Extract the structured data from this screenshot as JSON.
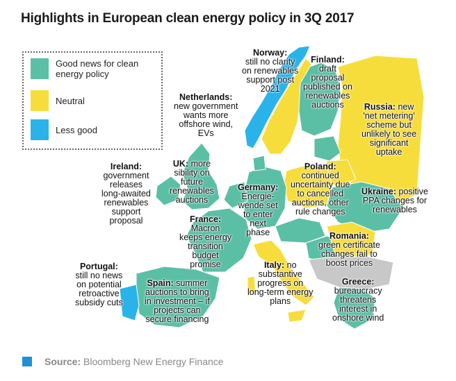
{
  "title": "Highlights in European clean energy policy in 3Q 2017",
  "colors": {
    "good": "#5bbfa6",
    "neutral": "#f7dd3c",
    "less_good": "#29b3ea",
    "no_data": "#c8c8c8",
    "accent": "#1e90d6"
  },
  "legend": [
    {
      "label": "Good news for clean energy policy",
      "category": "good"
    },
    {
      "label": "Neutral",
      "category": "neutral"
    },
    {
      "label": "Less good",
      "category": "less_good"
    }
  ],
  "countries": {
    "norway": {
      "name": "Norway:",
      "text": [
        "still no clarity",
        "on renewables",
        "support post",
        "2021"
      ],
      "category": "less_good"
    },
    "finland": {
      "name": "Finland:",
      "text": [
        "draft",
        "proposal",
        "published on",
        "renewables",
        "auctions"
      ],
      "category": "good"
    },
    "netherlands": {
      "name": "Netherlands:",
      "text": [
        "new government",
        "wants more",
        "offshore wind,",
        "EVs"
      ],
      "category": "good"
    },
    "russia": {
      "name": "Russia:",
      "text": [
        "new",
        "'net metering'",
        "scheme but",
        "unlikely to see",
        "significant",
        "uptake"
      ],
      "category": "neutral"
    },
    "ireland": {
      "name": "Ireland:",
      "text": [
        "government",
        "releases",
        "long-awaited",
        "renewables",
        "support",
        "proposal"
      ],
      "category": "good"
    },
    "uk": {
      "name": "UK:",
      "text": [
        "more",
        "sibility on",
        "future",
        "renewables",
        "auctions"
      ],
      "category": "good"
    },
    "poland": {
      "name": "Poland:",
      "text": [
        "continued",
        "uncertainty due",
        "to cancelled",
        "auctions, other",
        "rule changes"
      ],
      "category": "neutral"
    },
    "germany": {
      "name": "Germany:",
      "text": [
        "Energie-",
        "wende set",
        "to enter",
        "next",
        "phase"
      ],
      "category": "good"
    },
    "ukraine": {
      "name": "Ukraine:",
      "text": [
        "positive",
        "PPA changes for",
        "renewables"
      ],
      "category": "good"
    },
    "france": {
      "name": "France:",
      "text": [
        "Macron",
        "keeps energy",
        "transition",
        "budget",
        "promise"
      ],
      "category": "good"
    },
    "romania": {
      "name": "Romania:",
      "text": [
        "green certificate",
        "changes fail to",
        "boost prices"
      ],
      "category": "neutral"
    },
    "portugal": {
      "name": "Portugal:",
      "text": [
        "still no news",
        "on potential",
        "retroactive",
        "subsidy cuts"
      ],
      "category": "less_good"
    },
    "spain": {
      "name": "Spain:",
      "text": [
        "summer",
        "auctions to bring",
        "in investment – if",
        "projects can",
        "secure financing"
      ],
      "category": "good"
    },
    "italy": {
      "name": "Italy:",
      "text": [
        "no",
        "substantive",
        "progress on",
        "long-term energy",
        "plans"
      ],
      "category": "neutral"
    },
    "greece": {
      "name": "Greece:",
      "text": [
        "bureaucracy",
        "threatens",
        "interest in",
        "onshore wind"
      ],
      "category": "good"
    }
  },
  "source": {
    "label": "Source:",
    "text": "Bloomberg New Energy Finance"
  }
}
